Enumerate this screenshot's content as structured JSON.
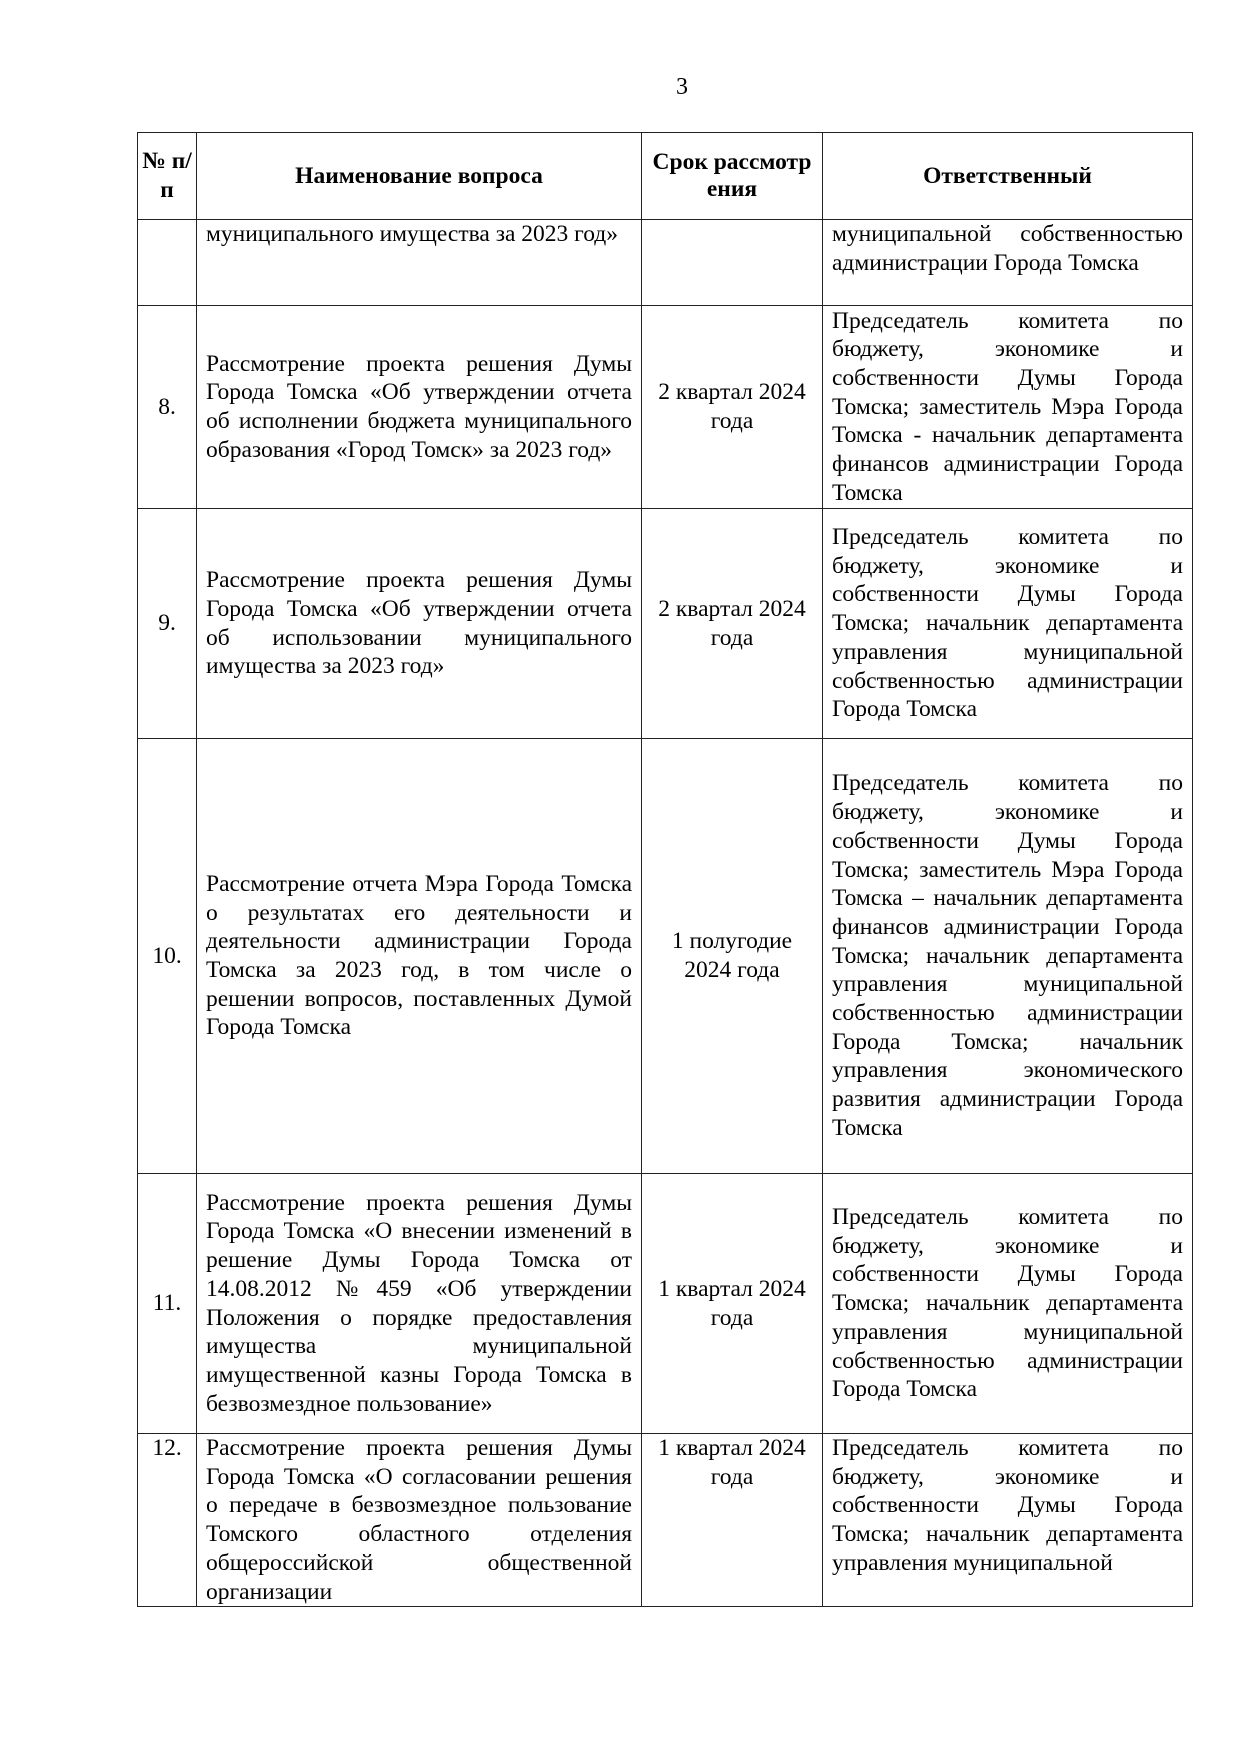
{
  "page_number": "3",
  "headers": [
    "№ п/п",
    "Наименование вопроса",
    "Срок рассмотрения",
    "Ответственный"
  ],
  "rows": [
    {
      "num": "",
      "question": "муниципального имущества за 2023 год»",
      "term": "",
      "responsible": "муниципальной собственностью администрации Города Томска"
    },
    {
      "num": "8.",
      "question": "Рассмотрение проекта решения Думы Города Томска «Об утверждении отчета об исполнении бюджета муниципального образования «Город Томск» за 2023 год»",
      "term": "2 квартал 2024 года",
      "responsible": "Председатель комитета по бюджету, экономике и собственности Думы Города Томска; заместитель Мэра Города Томска - начальник департамента финансов администрации Города Томска"
    },
    {
      "num": "9.",
      "question": "Рассмотрение проекта решения Думы Города Томска «Об утверждении отчета об использовании муниципального имущества за 2023 год»",
      "term": "2 квартал 2024 года",
      "responsible": "Председатель комитета по бюджету, экономике и собственности Думы Города Томска; начальник департамента управления муниципальной собственностью администрации Города Томска"
    },
    {
      "num": "10.",
      "question": "Рассмотрение отчета Мэра Города Томска о результатах его деятельности и деятельности администрации Города Томска за 2023 год, в том числе о решении вопросов, поставленных Думой Города Томска",
      "term": "1 полугодие 2024 года",
      "responsible": "Председатель комитета по бюджету, экономике и собственности Думы Города Томска; заместитель Мэра Города Томска – начальник департамента финансов администрации Города Томска; начальник департамента управления муниципальной собственностью администрации Города Томска; начальник управления экономического развития администрации Города Томска"
    },
    {
      "num": "11.",
      "question": "Рассмотрение проекта решения Думы Города Томска «О внесении изменений в решение Думы Города Томска от 14.08.2012 №459 «Об утверждении Положения о порядке предоставления имущества муниципальной имущественной казны Города Томска в безвозмездное пользование»",
      "term": "1 квартал 2024 года",
      "responsible": "Председатель комитета по бюджету, экономике и собственности Думы Города Томска; начальник департамента управления муниципальной собственностью администрации Города Томска"
    },
    {
      "num": "12.",
      "question": "Рассмотрение проекта решения Думы Города Томска «О согласовании решения о передаче в безвозмездное пользование Томского областного отделения общероссийской общественной организации",
      "term": "1 квартал 2024 года",
      "responsible": "Председатель комитета по бюджету, экономике и собственности Думы Города Томска; начальник департамента управления муниципальной"
    }
  ]
}
